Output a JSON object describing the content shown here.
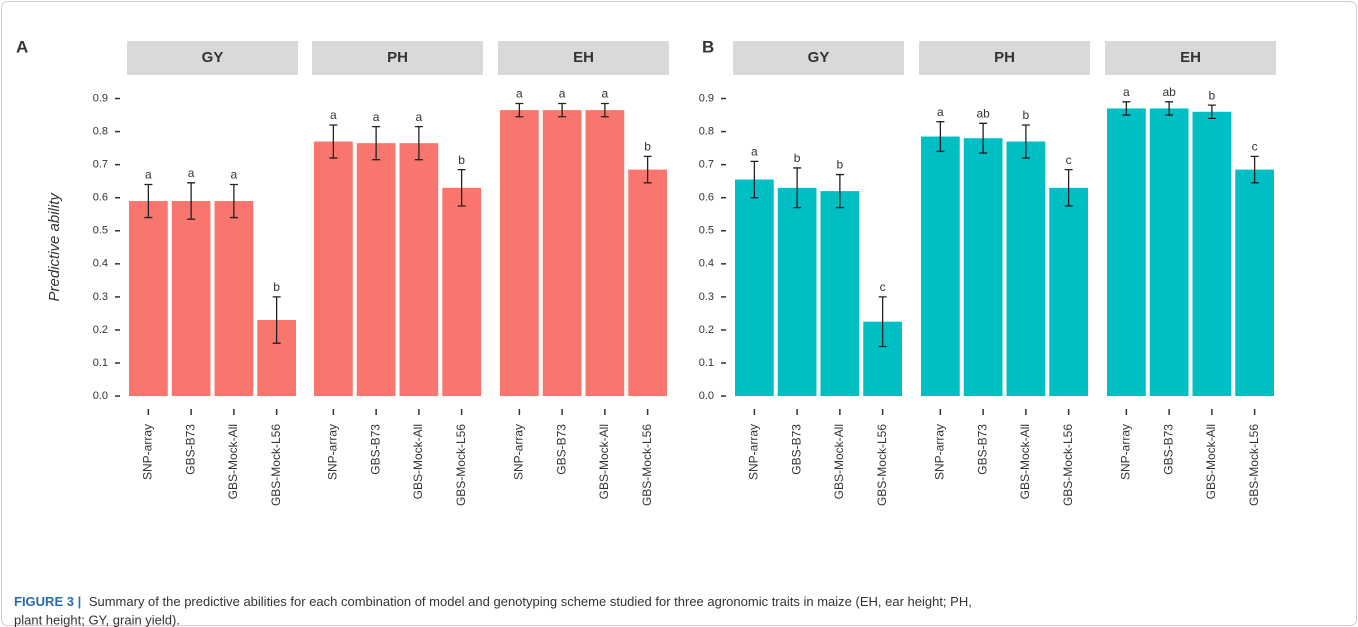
{
  "chart_data": [
    {
      "type": "bar",
      "panel": "A",
      "title": "GY",
      "ylabel": "Predictive ability",
      "color": "#f8766d",
      "categories": [
        "SNP-array",
        "GBS-B73",
        "GBS-Mock-All",
        "GBS-Mock-L56"
      ],
      "values": [
        0.59,
        0.59,
        0.59,
        0.23
      ],
      "errors": [
        0.05,
        0.055,
        0.05,
        0.07
      ],
      "letters": [
        "a",
        "a",
        "a",
        "b"
      ],
      "ylim": [
        -0.03,
        0.95
      ],
      "yticks": [
        {
          "value": 0,
          "label": "0.0"
        },
        0.1,
        0.2,
        0.3,
        0.4,
        0.5,
        0.6,
        0.7,
        0.8,
        0.9
      ]
    },
    {
      "type": "bar",
      "panel": "A",
      "title": "PH",
      "color": "#f8766d",
      "categories": [
        "SNP-array",
        "GBS-B73",
        "GBS-Mock-All",
        "GBS-Mock-L56"
      ],
      "values": [
        0.77,
        0.765,
        0.765,
        0.63
      ],
      "errors": [
        0.05,
        0.05,
        0.05,
        0.055
      ],
      "letters": [
        "a",
        "a",
        "a",
        "b"
      ],
      "ylim": [
        -0.03,
        0.95
      ]
    },
    {
      "type": "bar",
      "panel": "A",
      "title": "EH",
      "color": "#f8766d",
      "categories": [
        "SNP-array",
        "GBS-B73",
        "GBS-Mock-All",
        "GBS-Mock-L56"
      ],
      "values": [
        0.865,
        0.865,
        0.865,
        0.685
      ],
      "errors": [
        0.02,
        0.02,
        0.02,
        0.04
      ],
      "letters": [
        "a",
        "a",
        "a",
        "b"
      ],
      "ylim": [
        -0.03,
        0.95
      ]
    },
    {
      "type": "bar",
      "panel": "B",
      "title": "GY",
      "color": "#00bfc4",
      "categories": [
        "SNP-array",
        "GBS-B73",
        "GBS-Mock-All",
        "GBS-Mock-L56"
      ],
      "values": [
        0.655,
        0.63,
        0.62,
        0.225
      ],
      "errors": [
        0.055,
        0.06,
        0.05,
        0.075
      ],
      "letters": [
        "a",
        "b",
        "b",
        "c"
      ],
      "ylim": [
        -0.03,
        0.95
      ],
      "yticks": [
        {
          "value": 0,
          "label": "0.0"
        },
        0.1,
        0.2,
        0.3,
        0.4,
        0.5,
        0.6,
        0.7,
        0.8,
        0.9
      ]
    },
    {
      "type": "bar",
      "panel": "B",
      "title": "PH",
      "color": "#00bfc4",
      "categories": [
        "SNP-array",
        "GBS-B73",
        "GBS-Mock-All",
        "GBS-Mock-L56"
      ],
      "values": [
        0.785,
        0.78,
        0.77,
        0.63
      ],
      "errors": [
        0.045,
        0.045,
        0.05,
        0.055
      ],
      "letters": [
        "a",
        "ab",
        "b",
        "c"
      ],
      "ylim": [
        -0.03,
        0.95
      ]
    },
    {
      "type": "bar",
      "panel": "B",
      "title": "EH",
      "color": "#00bfc4",
      "categories": [
        "SNP-array",
        "GBS-B73",
        "GBS-Mock-All",
        "GBS-Mock-L56"
      ],
      "values": [
        0.87,
        0.87,
        0.86,
        0.685
      ],
      "errors": [
        0.02,
        0.02,
        0.02,
        0.04
      ],
      "letters": [
        "a",
        "ab",
        "b",
        "c"
      ],
      "ylim": [
        -0.03,
        0.95
      ]
    }
  ],
  "caption": {
    "label": "FIGURE 3 |",
    "text": "Summary of the predictive abilities for each combination of model and genotyping scheme studied for three agronomic traits in maize (EH, ear height; PH,",
    "text2": "plant height; GY, grain yield)."
  }
}
